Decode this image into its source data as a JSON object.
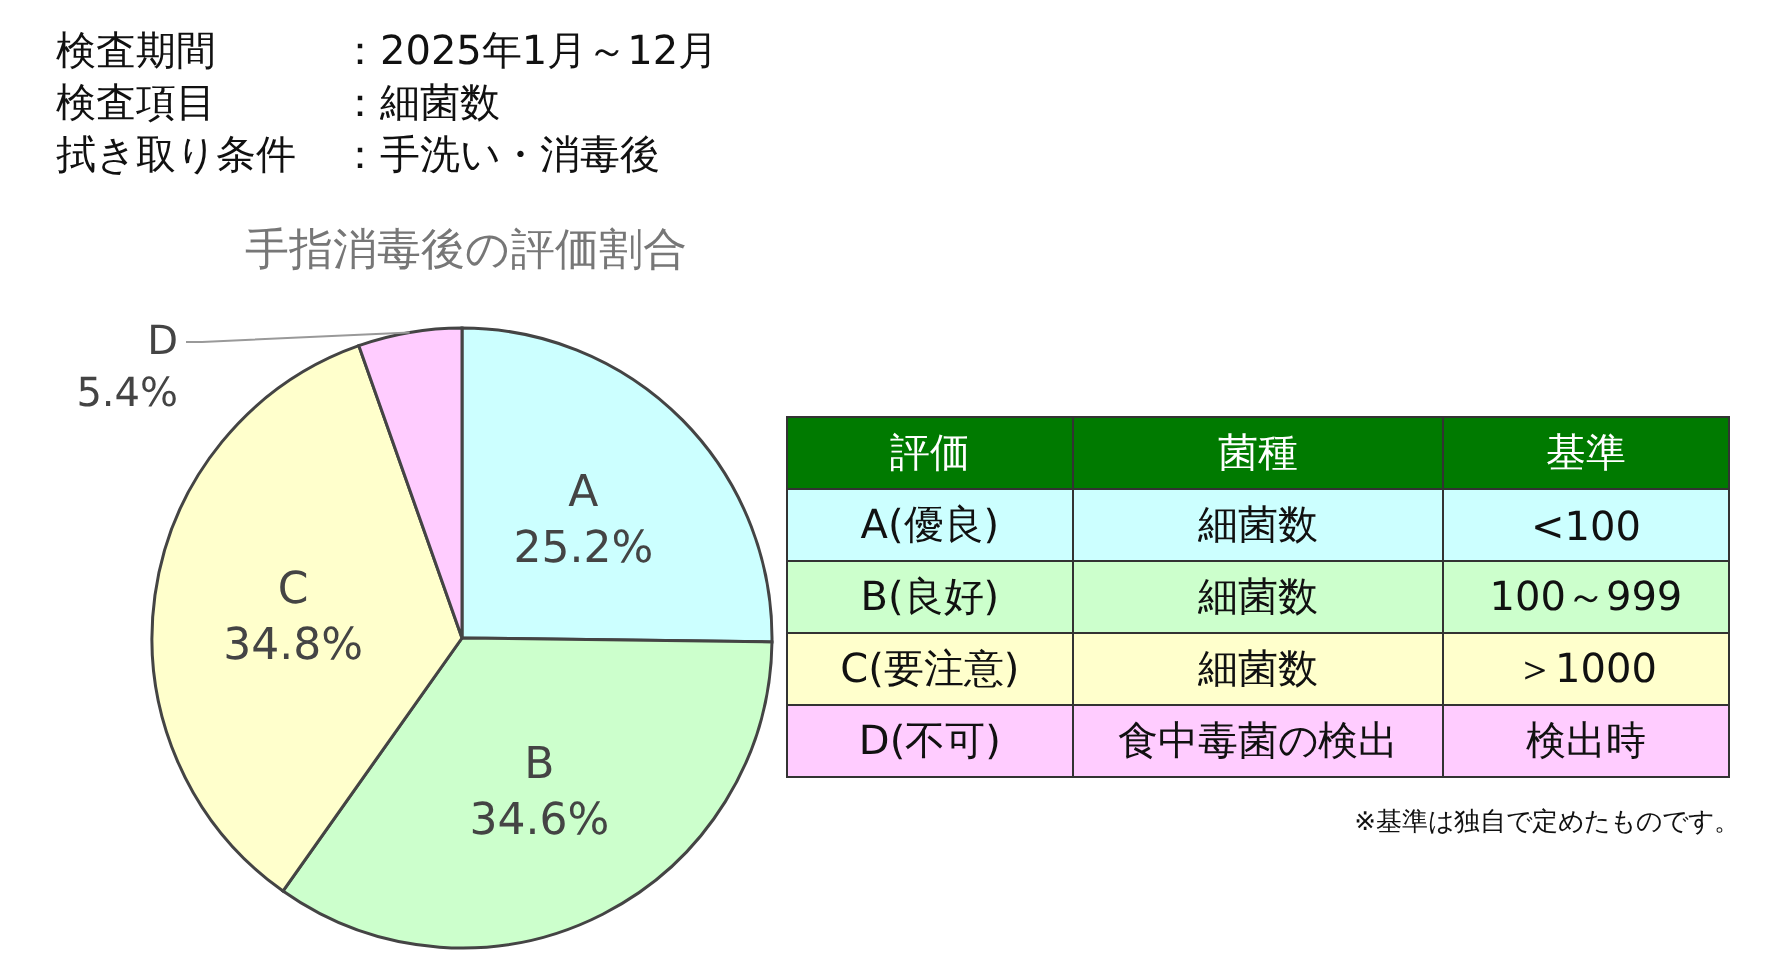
{
  "chart_data": {
    "type": "pie",
    "title": "手指消毒後の評価割合",
    "categories": [
      "A",
      "B",
      "C",
      "D"
    ],
    "values": [
      25.2,
      34.6,
      34.8,
      5.4
    ],
    "value_labels": [
      "25.2%",
      "34.6%",
      "34.8%",
      "5.4%"
    ],
    "colors": [
      "#ccffff",
      "#ccffcc",
      "#ffffcc",
      "#ffccff"
    ],
    "annotations": [
      "検査期間",
      "：2025年1月～12月",
      "検査項目",
      "：細菌数",
      "拭き取り条件",
      "：手洗い・消毒後",
      "評価",
      "菌種",
      "基準",
      "A(優良)",
      "細菌数",
      "<100",
      "B(良好)",
      "細菌数",
      "100～999",
      "C(要注意)",
      "細菌数",
      "＞1000",
      "D(不可)",
      "食中毒菌の検出",
      "検出時",
      "※基準は独自で定めたものです。"
    ]
  }
}
